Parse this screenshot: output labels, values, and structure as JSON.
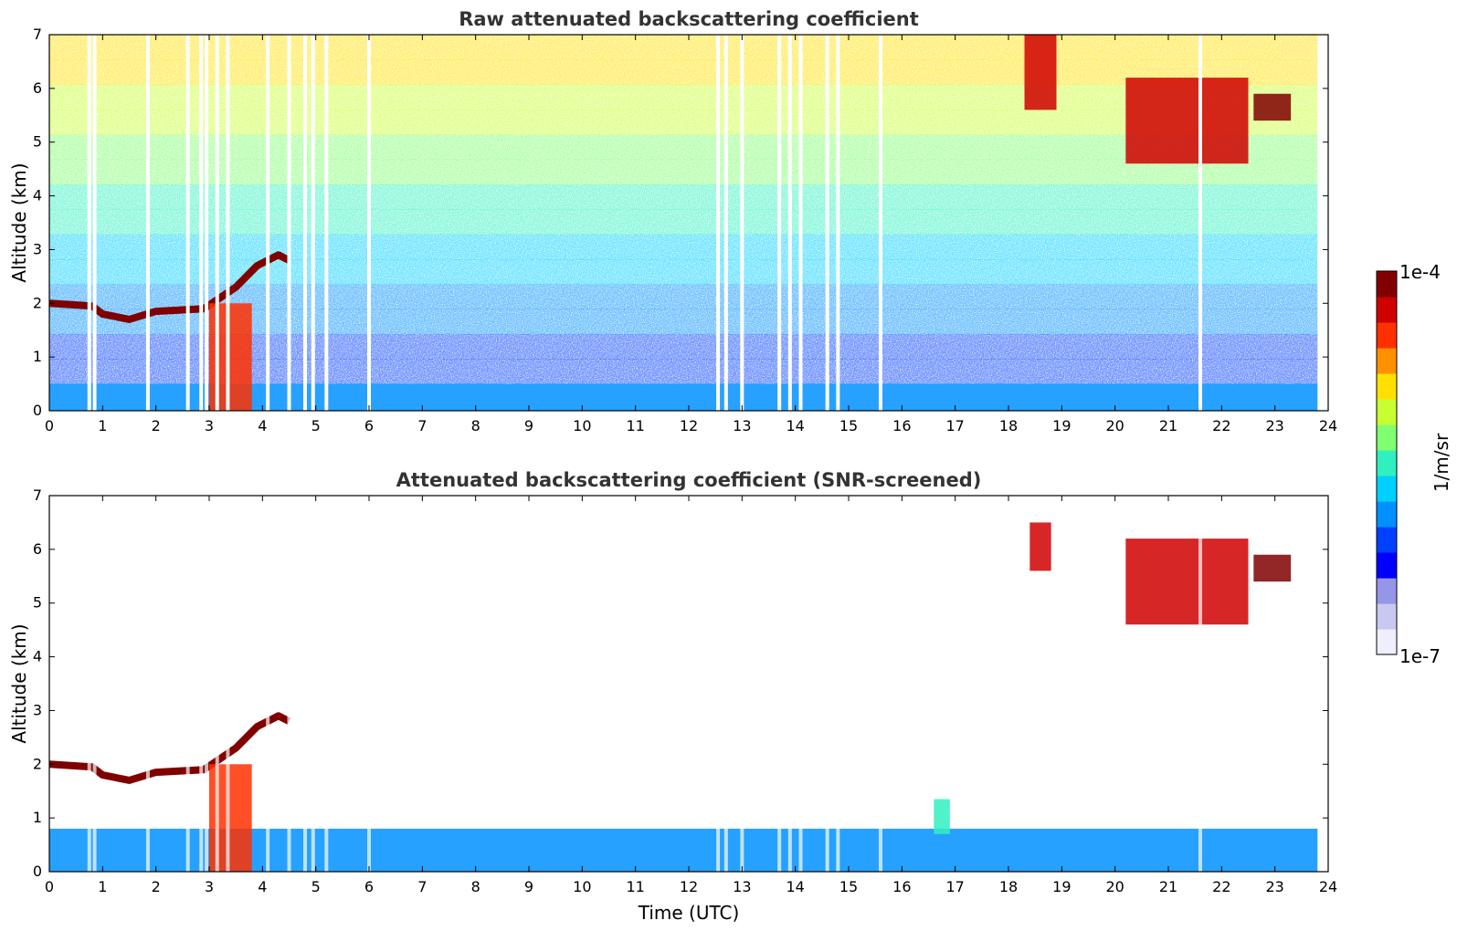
{
  "chart_data": [
    {
      "type": "heatmap",
      "title": "Raw attenuated backscattering coefficient",
      "xlabel": "",
      "ylabel": "Altitude (km)",
      "xlim": [
        0,
        24
      ],
      "ylim": [
        0,
        7
      ],
      "xticks": [
        0,
        1,
        2,
        3,
        4,
        5,
        6,
        7,
        8,
        9,
        10,
        11,
        12,
        13,
        14,
        15,
        16,
        17,
        18,
        19,
        20,
        21,
        22,
        23,
        24
      ],
      "yticks": [
        0,
        1,
        2,
        3,
        4,
        5,
        6,
        7
      ],
      "features": [
        {
          "label": "noisy background",
          "x": [
            0,
            23.8
          ],
          "y": [
            0.5,
            7
          ],
          "value": "3e-6 to 3e-5"
        },
        {
          "label": "boundary layer",
          "x": [
            0,
            23.8
          ],
          "y": [
            0,
            0.5
          ],
          "value": "1e-6"
        },
        {
          "label": "cloud layer",
          "points": [
            [
              0,
              2.0
            ],
            [
              0.8,
              1.95
            ],
            [
              1.0,
              1.8
            ],
            [
              1.5,
              1.7
            ],
            [
              2.0,
              1.85
            ],
            [
              2.9,
              1.9
            ],
            [
              3.5,
              2.3
            ],
            [
              3.9,
              2.7
            ],
            [
              4.3,
              2.9
            ],
            [
              4.5,
              2.8
            ]
          ],
          "value": "1e-4"
        },
        {
          "label": "precipitation",
          "x": [
            3.0,
            3.8
          ],
          "y": [
            0,
            2.0
          ],
          "value": "3e-5"
        },
        {
          "label": "cloud layer",
          "x": [
            18.3,
            18.9
          ],
          "y": [
            5.6,
            7
          ],
          "value": "5e-5"
        },
        {
          "label": "cloud layer",
          "x": [
            20.2,
            22.5
          ],
          "y": [
            4.6,
            6.2
          ],
          "value": "5e-5"
        },
        {
          "label": "cloud layer",
          "x": [
            22.6,
            23.3
          ],
          "y": [
            5.4,
            5.9
          ],
          "value": "1e-4"
        }
      ],
      "missing_data_times": [
        0.75,
        0.85,
        1.85,
        2.6,
        2.85,
        2.95,
        3.15,
        3.35,
        4.1,
        4.5,
        4.8,
        4.95,
        5.2,
        6.0,
        12.55,
        12.7,
        13.0,
        13.7,
        13.9,
        14.1,
        14.6,
        14.8,
        15.6,
        21.6
      ]
    },
    {
      "type": "heatmap",
      "title": "Attenuated backscattering coefficient (SNR-screened)",
      "xlabel": "Time (UTC)",
      "ylabel": "Altitude (km)",
      "xlim": [
        0,
        24
      ],
      "ylim": [
        0,
        7
      ],
      "xticks": [
        0,
        1,
        2,
        3,
        4,
        5,
        6,
        7,
        8,
        9,
        10,
        11,
        12,
        13,
        14,
        15,
        16,
        17,
        18,
        19,
        20,
        21,
        22,
        23,
        24
      ],
      "yticks": [
        0,
        1,
        2,
        3,
        4,
        5,
        6,
        7
      ],
      "features": [
        {
          "label": "boundary layer",
          "x": [
            0,
            23.8
          ],
          "y": [
            0,
            0.8
          ],
          "value": "1e-6"
        },
        {
          "label": "cloud layer",
          "points": [
            [
              0,
              2.0
            ],
            [
              0.8,
              1.95
            ],
            [
              1.0,
              1.8
            ],
            [
              1.5,
              1.7
            ],
            [
              2.0,
              1.85
            ],
            [
              2.9,
              1.9
            ],
            [
              3.5,
              2.3
            ],
            [
              3.9,
              2.7
            ],
            [
              4.3,
              2.9
            ],
            [
              4.5,
              2.8
            ]
          ],
          "value": "1e-4"
        },
        {
          "label": "precipitation",
          "x": [
            3.0,
            3.8
          ],
          "y": [
            0,
            2.0
          ],
          "value": "3e-5"
        },
        {
          "label": "aerosol plume",
          "x": [
            16.6,
            16.9
          ],
          "y": [
            0.7,
            1.35
          ],
          "value": "3e-6"
        },
        {
          "label": "cloud layer",
          "x": [
            18.4,
            18.8
          ],
          "y": [
            5.6,
            6.5
          ],
          "value": "5e-5"
        },
        {
          "label": "cloud layer",
          "x": [
            20.2,
            22.5
          ],
          "y": [
            4.6,
            6.2
          ],
          "value": "5e-5"
        },
        {
          "label": "cloud layer",
          "x": [
            22.6,
            23.3
          ],
          "y": [
            5.4,
            5.9
          ],
          "value": "1e-4"
        }
      ]
    }
  ],
  "colorbar": {
    "label": "1/m/sr",
    "max_label": "1e-4",
    "min_label": "1e-7",
    "scale": "log",
    "colormap": "jet",
    "colors": [
      "#eeeefc",
      "#c8c8f0",
      "#9696e8",
      "#0000ff",
      "#0040ff",
      "#0090ff",
      "#00d0ff",
      "#30f0c0",
      "#80ff70",
      "#c8ff30",
      "#ffe000",
      "#ff9000",
      "#ff3000",
      "#d00000",
      "#800000"
    ]
  }
}
